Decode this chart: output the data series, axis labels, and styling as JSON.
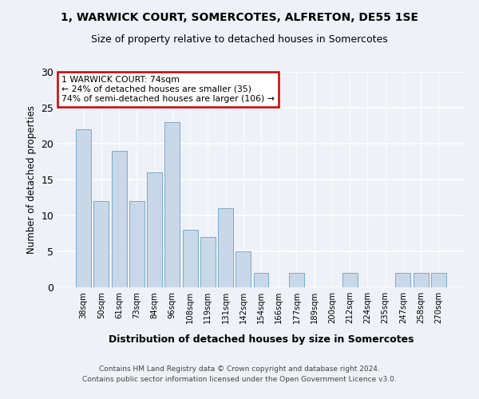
{
  "title1": "1, WARWICK COURT, SOMERCOTES, ALFRETON, DE55 1SE",
  "title2": "Size of property relative to detached houses in Somercotes",
  "xlabel": "Distribution of detached houses by size in Somercotes",
  "ylabel": "Number of detached properties",
  "categories": [
    "38sqm",
    "50sqm",
    "61sqm",
    "73sqm",
    "84sqm",
    "96sqm",
    "108sqm",
    "119sqm",
    "131sqm",
    "142sqm",
    "154sqm",
    "166sqm",
    "177sqm",
    "189sqm",
    "200sqm",
    "212sqm",
    "224sqm",
    "235sqm",
    "247sqm",
    "258sqm",
    "270sqm"
  ],
  "values": [
    22,
    12,
    19,
    12,
    16,
    23,
    8,
    7,
    11,
    5,
    2,
    0,
    2,
    0,
    0,
    2,
    0,
    0,
    2,
    2,
    2
  ],
  "bar_color": "#c8d8e8",
  "bar_edge_color": "#7aaac8",
  "annotation_box_color": "#ffffff",
  "annotation_border_color": "#cc0000",
  "annotation_text_line1": "1 WARWICK COURT: 74sqm",
  "annotation_text_line2": "← 24% of detached houses are smaller (35)",
  "annotation_text_line3": "74% of semi-detached houses are larger (106) →",
  "ylim": [
    0,
    30
  ],
  "yticks": [
    0,
    5,
    10,
    15,
    20,
    25,
    30
  ],
  "footer_line1": "Contains HM Land Registry data © Crown copyright and database right 2024.",
  "footer_line2": "Contains public sector information licensed under the Open Government Licence v3.0.",
  "background_color": "#eef2f8",
  "plot_bg_color": "#eef2f8"
}
